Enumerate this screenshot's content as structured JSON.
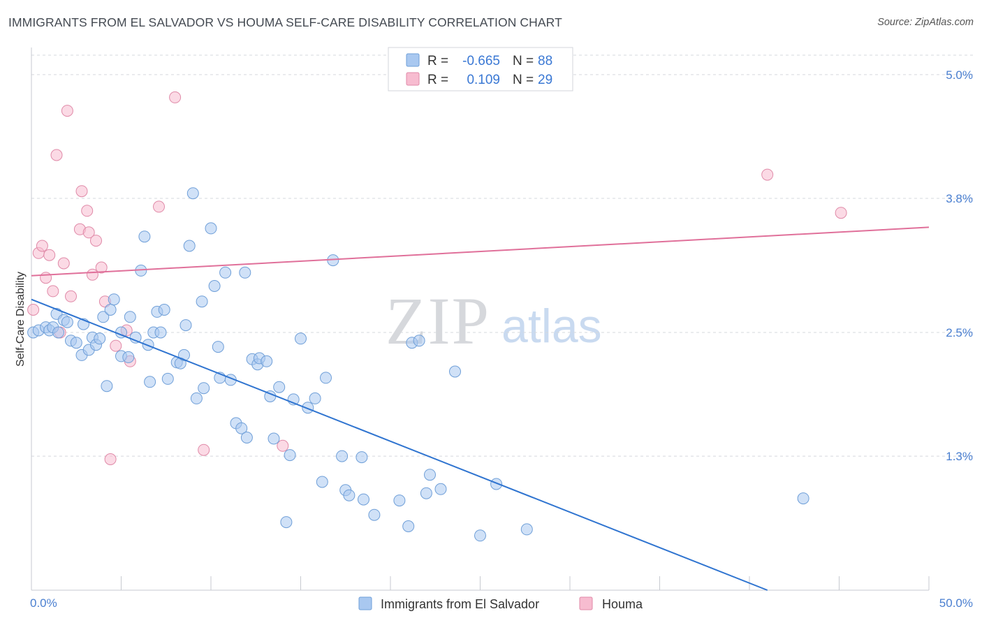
{
  "title": "IMMIGRANTS FROM EL SALVADOR VS HOUMA SELF-CARE DISABILITY CORRELATION CHART",
  "source": "Source: ZipAtlas.com",
  "watermark": {
    "zip": "ZIP",
    "atlas": "atlas"
  },
  "legend": {
    "r_label": "R =",
    "n_label": "N =",
    "rows": [
      {
        "r": "-0.665",
        "n": "88"
      },
      {
        "r": "0.109",
        "n": "29"
      }
    ]
  },
  "colors": {
    "blue_fill": "#a9c8f0",
    "blue_stroke": "#6f9fd8",
    "blue_line": "#2f74d0",
    "pink_fill": "#f7bcd0",
    "pink_stroke": "#e08aa8",
    "pink_line": "#e0709a",
    "grid": "#d5d8dd",
    "tick_text": "#4a7fd0"
  },
  "chart_data": {
    "type": "scatter",
    "title": "IMMIGRANTS FROM EL SALVADOR VS HOUMA SELF-CARE DISABILITY CORRELATION CHART",
    "xlabel": "",
    "ylabel": "Self-Care Disability",
    "xlim": [
      0,
      50
    ],
    "ylim": [
      0,
      5.25
    ],
    "x_tick_labels": [
      "0.0%",
      "50.0%"
    ],
    "y_ticks": [
      {
        "value": 1.3,
        "label": "1.3%"
      },
      {
        "value": 2.5,
        "label": "2.5%"
      },
      {
        "value": 3.8,
        "label": "3.8%"
      },
      {
        "value": 5.0,
        "label": "5.0%"
      }
    ],
    "grid": "horizontal dashed",
    "legend_position": "top-center",
    "series": [
      {
        "name": "Immigrants from El Salvador",
        "color": "#a9c8f0",
        "trend": {
          "x": [
            0,
            41
          ],
          "y": [
            2.82,
            0.0
          ]
        },
        "points": [
          [
            0.1,
            2.5
          ],
          [
            0.4,
            2.52
          ],
          [
            0.8,
            2.55
          ],
          [
            1.0,
            2.52
          ],
          [
            1.2,
            2.55
          ],
          [
            1.4,
            2.68
          ],
          [
            1.5,
            2.5
          ],
          [
            1.8,
            2.62
          ],
          [
            2.0,
            2.6
          ],
          [
            2.2,
            2.42
          ],
          [
            2.5,
            2.4
          ],
          [
            2.8,
            2.28
          ],
          [
            2.9,
            2.58
          ],
          [
            3.2,
            2.33
          ],
          [
            3.4,
            2.45
          ],
          [
            3.6,
            2.38
          ],
          [
            3.8,
            2.44
          ],
          [
            4.0,
            2.65
          ],
          [
            4.2,
            1.98
          ],
          [
            4.4,
            2.72
          ],
          [
            4.6,
            2.82
          ],
          [
            5.0,
            2.5
          ],
          [
            5.0,
            2.27
          ],
          [
            5.5,
            2.65
          ],
          [
            5.4,
            2.26
          ],
          [
            5.8,
            2.45
          ],
          [
            6.1,
            3.1
          ],
          [
            6.3,
            3.43
          ],
          [
            6.5,
            2.38
          ],
          [
            6.6,
            2.02
          ],
          [
            6.8,
            2.5
          ],
          [
            7.0,
            2.7
          ],
          [
            7.2,
            2.5
          ],
          [
            7.4,
            2.72
          ],
          [
            7.6,
            2.05
          ],
          [
            8.1,
            2.21
          ],
          [
            8.3,
            2.2
          ],
          [
            8.5,
            2.28
          ],
          [
            8.6,
            2.57
          ],
          [
            8.8,
            3.34
          ],
          [
            9.0,
            3.85
          ],
          [
            9.2,
            1.86
          ],
          [
            9.5,
            2.8
          ],
          [
            9.6,
            1.96
          ],
          [
            10.0,
            3.51
          ],
          [
            10.2,
            2.95
          ],
          [
            10.4,
            2.36
          ],
          [
            10.5,
            2.06
          ],
          [
            10.8,
            3.08
          ],
          [
            11.1,
            2.04
          ],
          [
            11.4,
            1.62
          ],
          [
            11.7,
            1.57
          ],
          [
            11.9,
            3.08
          ],
          [
            12.0,
            1.48
          ],
          [
            12.3,
            2.24
          ],
          [
            12.6,
            2.19
          ],
          [
            12.7,
            2.25
          ],
          [
            13.1,
            2.22
          ],
          [
            13.3,
            1.88
          ],
          [
            13.5,
            1.47
          ],
          [
            13.8,
            1.97
          ],
          [
            14.2,
            0.66
          ],
          [
            14.4,
            1.31
          ],
          [
            14.6,
            1.85
          ],
          [
            15.0,
            2.44
          ],
          [
            15.4,
            1.77
          ],
          [
            15.8,
            1.86
          ],
          [
            16.2,
            1.05
          ],
          [
            16.4,
            2.06
          ],
          [
            16.8,
            3.2
          ],
          [
            17.3,
            1.3
          ],
          [
            17.5,
            0.97
          ],
          [
            17.7,
            0.92
          ],
          [
            18.4,
            1.29
          ],
          [
            18.5,
            0.88
          ],
          [
            19.1,
            0.73
          ],
          [
            20.5,
            0.87
          ],
          [
            21.0,
            0.62
          ],
          [
            21.2,
            2.4
          ],
          [
            21.6,
            2.42
          ],
          [
            22.0,
            0.94
          ],
          [
            22.2,
            1.12
          ],
          [
            22.8,
            0.98
          ],
          [
            23.6,
            2.12
          ],
          [
            25.0,
            0.53
          ],
          [
            25.9,
            1.03
          ],
          [
            27.6,
            0.59
          ],
          [
            43.0,
            0.89
          ]
        ]
      },
      {
        "name": "Houma",
        "color": "#f7bcd0",
        "trend": {
          "x": [
            0,
            50
          ],
          "y": [
            3.05,
            3.52
          ]
        },
        "points": [
          [
            0.1,
            2.72
          ],
          [
            0.4,
            3.27
          ],
          [
            0.6,
            3.34
          ],
          [
            0.8,
            3.03
          ],
          [
            1.0,
            3.25
          ],
          [
            1.2,
            2.9
          ],
          [
            1.4,
            4.22
          ],
          [
            1.6,
            2.5
          ],
          [
            1.8,
            3.17
          ],
          [
            2.0,
            4.65
          ],
          [
            2.2,
            2.85
          ],
          [
            2.7,
            3.5
          ],
          [
            2.8,
            3.87
          ],
          [
            3.1,
            3.68
          ],
          [
            3.2,
            3.47
          ],
          [
            3.4,
            3.06
          ],
          [
            3.6,
            3.39
          ],
          [
            3.9,
            3.13
          ],
          [
            4.1,
            2.8
          ],
          [
            4.4,
            1.27
          ],
          [
            4.7,
            2.37
          ],
          [
            5.3,
            2.52
          ],
          [
            5.5,
            2.22
          ],
          [
            7.1,
            3.72
          ],
          [
            8.0,
            4.78
          ],
          [
            9.6,
            1.36
          ],
          [
            14.0,
            1.4
          ],
          [
            41.0,
            4.03
          ],
          [
            45.1,
            3.66
          ]
        ]
      }
    ]
  }
}
